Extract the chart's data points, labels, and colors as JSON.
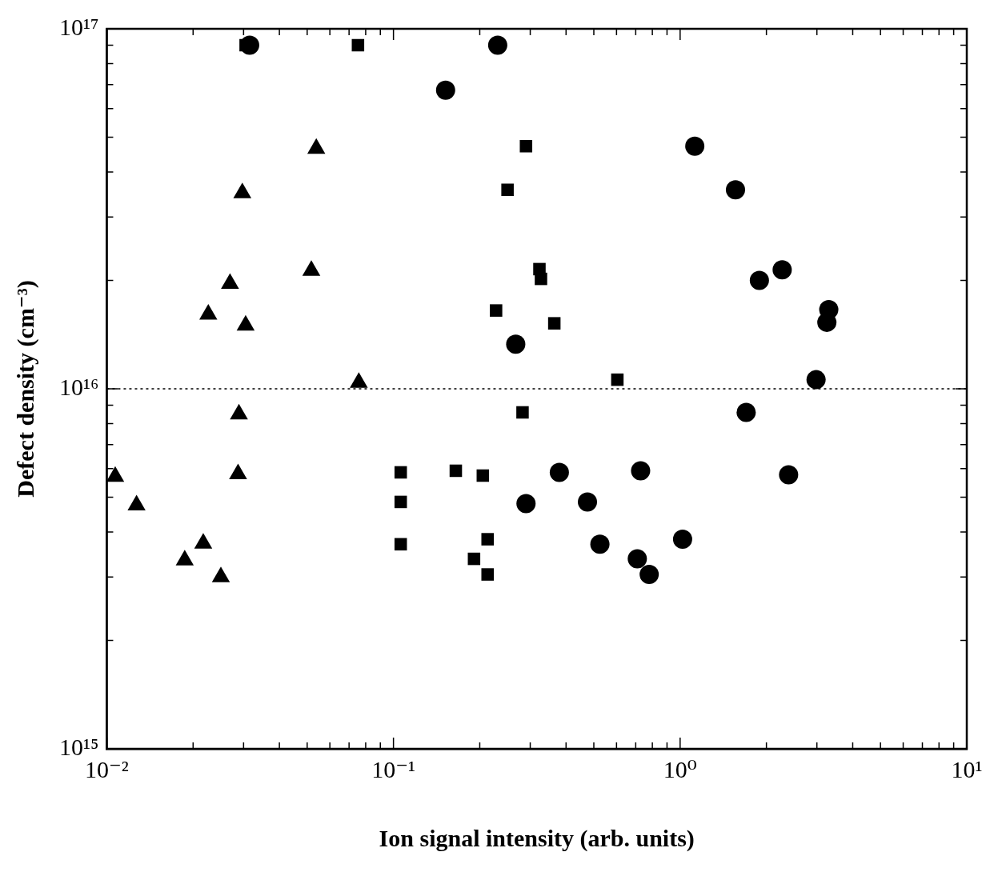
{
  "chart_data": {
    "type": "scatter",
    "xlabel": "Ion signal intensity (arb. units)",
    "ylabel": "Defect density (cm⁻³)",
    "log": "xy",
    "grid": false,
    "legend": false,
    "xlim": [
      0.01,
      10
    ],
    "ylim": [
      1000000000000000.0,
      1e+17
    ],
    "xticks": [
      {
        "value": 0.01,
        "label": "10⁻²"
      },
      {
        "value": 0.1,
        "label": "10⁻¹"
      },
      {
        "value": 1,
        "label": "10⁰"
      },
      {
        "value": 10,
        "label": "10¹"
      }
    ],
    "yticks": [
      {
        "value": 1000000000000000.0,
        "label": "10¹⁵"
      },
      {
        "value": 1e+16,
        "label": "10¹⁶"
      },
      {
        "value": 1e+17,
        "label": "10¹⁷"
      }
    ],
    "ref_lines": [
      {
        "axis": "y",
        "value": 1e+16,
        "color": "#000000",
        "line_style": "dotted"
      }
    ],
    "series": [
      {
        "color": "#000000",
        "marker": "triangle",
        "x": [
          0.0107,
          0.0127,
          0.0187,
          0.0217,
          0.025,
          0.0226,
          0.0269,
          0.0305,
          0.0297,
          0.0289,
          0.0287,
          0.0517,
          0.0538,
          0.0757
        ],
        "values": [
          5700000000000000.0,
          4750000000000000.0,
          3340000000000000.0,
          3720000000000000.0,
          3000000000000000.0,
          1.61e+16,
          1.96e+16,
          1.5e+16,
          3.5e+16,
          8500000000000000.0,
          5800000000000000.0,
          2.13e+16,
          4.65e+16,
          1.04e+16
        ]
      },
      {
        "color": "#000000",
        "marker": "square",
        "x": [
          0.0305,
          0.0752,
          0.29,
          0.25,
          0.323,
          0.327,
          0.228,
          0.364,
          0.604,
          0.282,
          0.106,
          0.106,
          0.106,
          0.165,
          0.205,
          0.213,
          0.191,
          0.213
        ],
        "values": [
          9e+16,
          9e+16,
          4.72e+16,
          3.57e+16,
          2.15e+16,
          2.02e+16,
          1.65e+16,
          1.52e+16,
          1.06e+16,
          8600000000000000.0,
          5860000000000000.0,
          4850000000000000.0,
          3700000000000000.0,
          5920000000000000.0,
          5740000000000000.0,
          3820000000000000.0,
          3370000000000000.0,
          3050000000000000.0
        ]
      },
      {
        "color": "#000000",
        "marker": "circle",
        "x": [
          0.0315,
          0.231,
          0.152,
          1.125,
          1.56,
          1.89,
          2.27,
          3.3,
          3.25,
          2.98,
          1.7,
          2.39,
          0.267,
          0.379,
          0.728,
          0.29,
          0.475,
          0.525,
          1.02,
          0.709,
          0.78
        ],
        "values": [
          9e+16,
          9e+16,
          6.75e+16,
          4.72e+16,
          3.57e+16,
          2e+16,
          2.14e+16,
          1.66e+16,
          1.53e+16,
          1.06e+16,
          8600000000000000.0,
          5770000000000000.0,
          1.33e+16,
          5860000000000000.0,
          5920000000000000.0,
          4800000000000000.0,
          4850000000000000.0,
          3700000000000000.0,
          3820000000000000.0,
          3370000000000000.0,
          3050000000000000.0
        ]
      }
    ]
  }
}
